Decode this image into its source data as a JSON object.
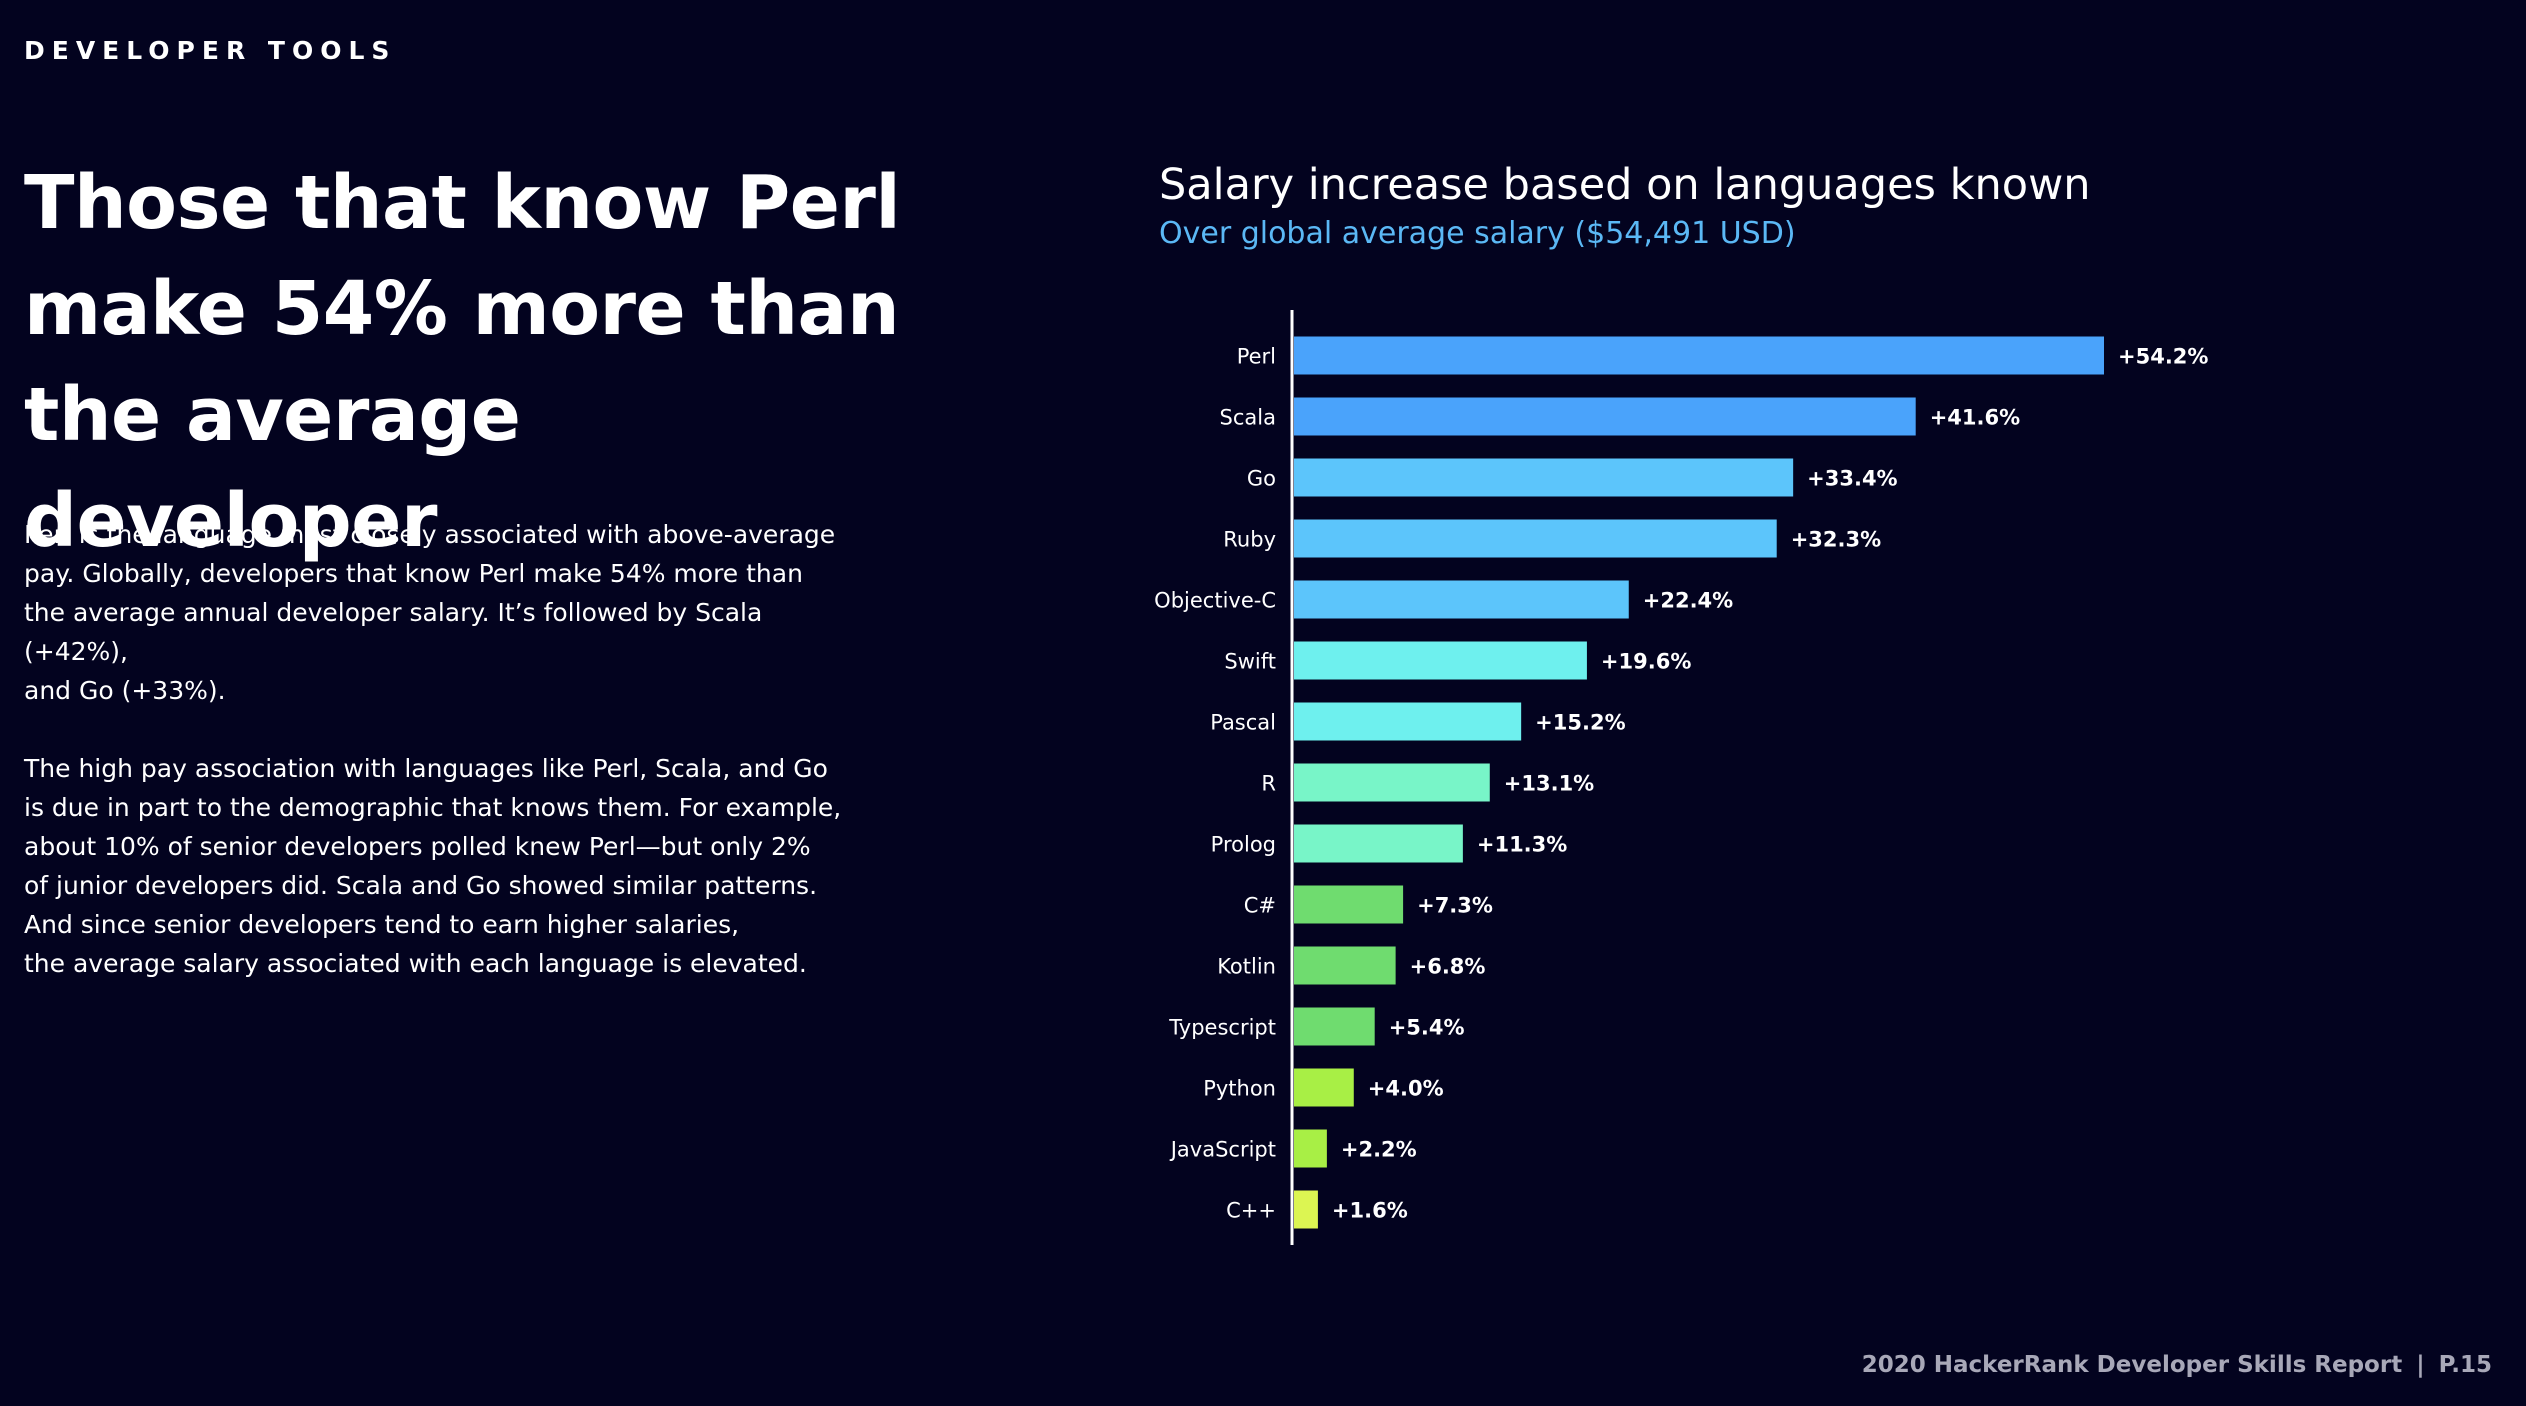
{
  "header": {
    "section": "DEVELOPER TOOLS"
  },
  "headline": "Those that know Perl make 54% more than the average developer",
  "body": {
    "paragraph1": "Perl is the language most closely associated with above-average\npay. Globally, developers that know Perl make 54% more than\nthe average annual developer salary. It’s followed by Scala (+42%),\nand Go (+33%).",
    "paragraph2": "The high pay association with languages like Perl, Scala, and Go\nis due in part to the demographic that knows them. For example,\nabout 10% of senior developers polled knew Perl—but only 2%\nof junior developers did. Scala and Go showed similar patterns.\nAnd since senior developers tend to earn higher salaries,\nthe average salary associated with each language is elevated."
  },
  "footer": {
    "report": "2020 HackerRank Developer Skills Report",
    "page": "P.15"
  },
  "chart_data": {
    "type": "bar",
    "orientation": "horizontal",
    "title": "Salary increase based on languages known",
    "subtitle": "Over global average salary ($54,491 USD)",
    "categories": [
      "Perl",
      "Scala",
      "Go",
      "Ruby",
      "Objective-C",
      "Swift",
      "Pascal",
      "R",
      "Prolog",
      "C#",
      "Kotlin",
      "Typescript",
      "Python",
      "JavaScript",
      "C++"
    ],
    "values": [
      54.2,
      41.6,
      33.4,
      32.3,
      22.4,
      19.6,
      15.2,
      13.1,
      11.3,
      7.3,
      6.8,
      5.4,
      4.0,
      2.2,
      1.6
    ],
    "labels": [
      "+54.2%",
      "+41.6%",
      "+33.4%",
      "+32.3%",
      "+22.4%",
      "+19.6%",
      "+15.2%",
      "+13.1%",
      "+11.3%",
      "+7.3%",
      "+6.8%",
      "+5.4%",
      "+4.0%",
      "+2.2%",
      "+1.6%"
    ],
    "colors": [
      "#4aa3fb",
      "#4aa3fb",
      "#5cc5fb",
      "#5cc5fb",
      "#5cc5fb",
      "#6ef0ee",
      "#6ef0ee",
      "#78f5c8",
      "#78f5c8",
      "#6fdc6f",
      "#6fdc6f",
      "#6fdc6f",
      "#a8ef45",
      "#a8ef45",
      "#dcf552"
    ],
    "xlim": [
      0,
      54.2
    ],
    "grid": false,
    "legend": "none"
  }
}
